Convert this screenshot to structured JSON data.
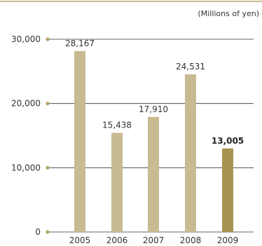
{
  "chart_data": {
    "type": "bar",
    "unit_label": "(Millions of yen)",
    "title": "",
    "xlabel": "",
    "ylabel": "",
    "categories": [
      "2005",
      "2006",
      "2007",
      "2008",
      "2009"
    ],
    "values": [
      28167,
      15438,
      17910,
      24531,
      13005
    ],
    "value_labels": [
      "28,167",
      "15,438",
      "17,910",
      "24,531",
      "13,005"
    ],
    "highlight_index": 4,
    "ylim": [
      0,
      30000
    ],
    "yticks": [
      0,
      10000,
      20000,
      30000
    ],
    "ytick_labels": [
      "0",
      "10,000",
      "20,000",
      "30,000"
    ],
    "grid": true,
    "colors": {
      "bar": "#c8bb91",
      "bar_highlight": "#a99352",
      "accent_rule": "#b5a269",
      "grid": "#333333",
      "tick_dot": "#b5a269"
    }
  }
}
